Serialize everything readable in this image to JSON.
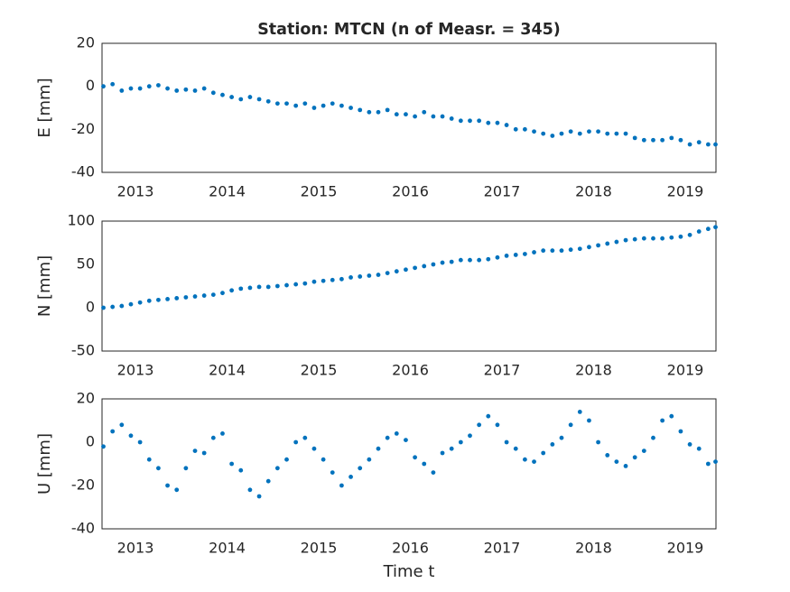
{
  "chart_data": [
    {
      "type": "scatter",
      "title": "Station: MTCN (n of Measr. = 345)",
      "ylabel": "E [mm]",
      "color": "#0072bd",
      "grid": true,
      "xlim": [
        2012.635,
        2019.335
      ],
      "xticks": [
        2013,
        2014,
        2015,
        2016,
        2017,
        2018,
        2019
      ],
      "ylim": [
        -40,
        20
      ],
      "yticks": [
        -40,
        -20,
        0,
        20
      ],
      "x": [
        2012.65,
        2012.75,
        2012.85,
        2012.95,
        2013.05,
        2013.15,
        2013.25,
        2013.35,
        2013.45,
        2013.55,
        2013.65,
        2013.75,
        2013.85,
        2013.95,
        2014.05,
        2014.15,
        2014.25,
        2014.35,
        2014.45,
        2014.55,
        2014.65,
        2014.75,
        2014.85,
        2014.95,
        2015.05,
        2015.15,
        2015.25,
        2015.35,
        2015.45,
        2015.55,
        2015.65,
        2015.75,
        2015.85,
        2015.95,
        2016.05,
        2016.15,
        2016.25,
        2016.35,
        2016.45,
        2016.55,
        2016.65,
        2016.75,
        2016.85,
        2016.95,
        2017.05,
        2017.15,
        2017.25,
        2017.35,
        2017.45,
        2017.55,
        2017.65,
        2017.75,
        2017.85,
        2017.95,
        2018.05,
        2018.15,
        2018.25,
        2018.35,
        2018.45,
        2018.55,
        2018.65,
        2018.75,
        2018.85,
        2018.95,
        2019.05,
        2019.15,
        2019.25,
        2019.33
      ],
      "values": [
        0,
        1,
        -2,
        -1,
        -1,
        0,
        0.5,
        -1,
        -2,
        -1.5,
        -2,
        -1,
        -3,
        -4,
        -5,
        -6,
        -5,
        -6,
        -7,
        -8,
        -8,
        -9,
        -8,
        -10,
        -9,
        -8,
        -9,
        -10,
        -11,
        -12,
        -12,
        -11,
        -13,
        -13,
        -14,
        -12,
        -14,
        -14,
        -15,
        -16,
        -16,
        -16,
        -17,
        -17,
        -18,
        -20,
        -20,
        -21,
        -22,
        -23,
        -22,
        -21,
        -22,
        -21,
        -21,
        -22,
        -22,
        -22,
        -24,
        -25,
        -25,
        -25,
        -24,
        -25,
        -27,
        -26,
        -27,
        -27
      ]
    },
    {
      "type": "scatter",
      "ylabel": "N [mm]",
      "color": "#0072bd",
      "grid": true,
      "xlim": [
        2012.635,
        2019.335
      ],
      "xticks": [
        2013,
        2014,
        2015,
        2016,
        2017,
        2018,
        2019
      ],
      "ylim": [
        -50,
        100
      ],
      "yticks": [
        -50,
        0,
        50,
        100
      ],
      "x": [
        2012.65,
        2012.75,
        2012.85,
        2012.95,
        2013.05,
        2013.15,
        2013.25,
        2013.35,
        2013.45,
        2013.55,
        2013.65,
        2013.75,
        2013.85,
        2013.95,
        2014.05,
        2014.15,
        2014.25,
        2014.35,
        2014.45,
        2014.55,
        2014.65,
        2014.75,
        2014.85,
        2014.95,
        2015.05,
        2015.15,
        2015.25,
        2015.35,
        2015.45,
        2015.55,
        2015.65,
        2015.75,
        2015.85,
        2015.95,
        2016.05,
        2016.15,
        2016.25,
        2016.35,
        2016.45,
        2016.55,
        2016.65,
        2016.75,
        2016.85,
        2016.95,
        2017.05,
        2017.15,
        2017.25,
        2017.35,
        2017.45,
        2017.55,
        2017.65,
        2017.75,
        2017.85,
        2017.95,
        2018.05,
        2018.15,
        2018.25,
        2018.35,
        2018.45,
        2018.55,
        2018.65,
        2018.75,
        2018.85,
        2018.95,
        2019.05,
        2019.15,
        2019.25,
        2019.33
      ],
      "values": [
        0,
        1,
        2,
        4,
        6,
        8,
        9,
        10,
        11,
        12,
        13,
        14,
        15,
        17,
        20,
        22,
        23,
        24,
        24,
        25,
        26,
        27,
        28,
        30,
        31,
        32,
        33,
        35,
        36,
        37,
        38,
        40,
        42,
        44,
        46,
        48,
        50,
        52,
        53,
        55,
        55,
        55,
        56,
        58,
        60,
        61,
        62,
        64,
        66,
        66,
        66,
        67,
        68,
        70,
        72,
        74,
        76,
        78,
        79,
        80,
        80,
        80,
        81,
        82,
        84,
        88,
        91,
        93
      ]
    },
    {
      "type": "scatter",
      "ylabel": "U [mm]",
      "xlabel": "Time t",
      "color": "#0072bd",
      "grid": true,
      "xlim": [
        2012.635,
        2019.335
      ],
      "xticks": [
        2013,
        2014,
        2015,
        2016,
        2017,
        2018,
        2019
      ],
      "ylim": [
        -40,
        20
      ],
      "yticks": [
        -40,
        -20,
        0,
        20
      ],
      "x": [
        2012.65,
        2012.75,
        2012.85,
        2012.95,
        2013.05,
        2013.15,
        2013.25,
        2013.35,
        2013.45,
        2013.55,
        2013.65,
        2013.75,
        2013.85,
        2013.95,
        2014.05,
        2014.15,
        2014.25,
        2014.35,
        2014.45,
        2014.55,
        2014.65,
        2014.75,
        2014.85,
        2014.95,
        2015.05,
        2015.15,
        2015.25,
        2015.35,
        2015.45,
        2015.55,
        2015.65,
        2015.75,
        2015.85,
        2015.95,
        2016.05,
        2016.15,
        2016.25,
        2016.35,
        2016.45,
        2016.55,
        2016.65,
        2016.75,
        2016.85,
        2016.95,
        2017.05,
        2017.15,
        2017.25,
        2017.35,
        2017.45,
        2017.55,
        2017.65,
        2017.75,
        2017.85,
        2017.95,
        2018.05,
        2018.15,
        2018.25,
        2018.35,
        2018.45,
        2018.55,
        2018.65,
        2018.75,
        2018.85,
        2018.95,
        2019.05,
        2019.15,
        2019.25,
        2019.33
      ],
      "values": [
        -2,
        5,
        8,
        3,
        0,
        -8,
        -12,
        -20,
        -22,
        -12,
        -4,
        -5,
        2,
        4,
        -10,
        -13,
        -22,
        -25,
        -18,
        -12,
        -8,
        0,
        2,
        -3,
        -8,
        -14,
        -20,
        -16,
        -12,
        -8,
        -3,
        2,
        4,
        1,
        -7,
        -10,
        -14,
        -5,
        -3,
        0,
        3,
        8,
        12,
        8,
        0,
        -3,
        -8,
        -9,
        -5,
        -1,
        2,
        8,
        14,
        10,
        0,
        -6,
        -9,
        -11,
        -7,
        -4,
        2,
        10,
        12,
        5,
        -1,
        -3,
        -10,
        -9
      ]
    }
  ]
}
